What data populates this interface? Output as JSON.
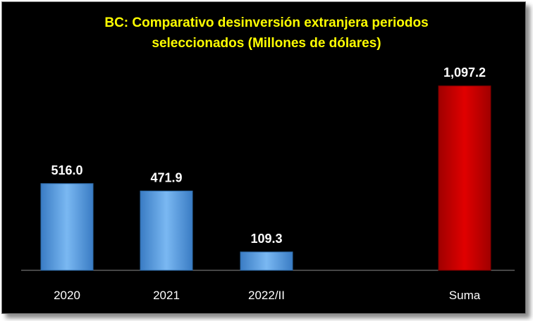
{
  "chart_data": {
    "type": "bar",
    "title_lines": [
      "BC: Comparativo desinversión extranjera periodos",
      "seleccionados (Millones  de dólares)"
    ],
    "categories": [
      "2020",
      "2021",
      "2022/II",
      "Suma"
    ],
    "values": [
      516.0,
      471.9,
      109.3,
      1097.2
    ],
    "data_labels": [
      "516.0",
      "471.9",
      "109.3",
      "1,097.2"
    ],
    "colors": [
      "#5fa4e6",
      "#5fa4e6",
      "#5fa4e6",
      "#d40000"
    ],
    "xlabel": "",
    "ylabel": "",
    "ylim": [
      0,
      1200
    ],
    "grid": false,
    "legend": "none"
  }
}
